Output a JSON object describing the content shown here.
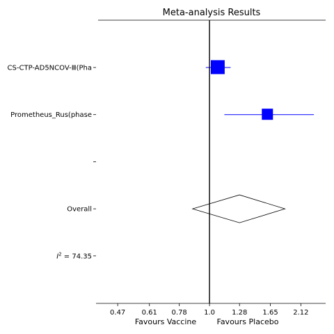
{
  "chart_data": {
    "type": "forest",
    "title": "Meta-analysis Results",
    "x_scale": "log",
    "x_ticks": [
      0.47,
      0.61,
      0.78,
      1.0,
      1.28,
      1.65,
      2.12
    ],
    "x_tick_labels": [
      "0.47",
      "0.61",
      "0.78",
      "1.0",
      "1.28",
      "1.65",
      "2.12"
    ],
    "xlim": [
      0.4,
      2.6
    ],
    "reference_line": 1.0,
    "xlabel_left": "Favours Vaccine",
    "xlabel_right": "Favours Placebo",
    "rows": [
      {
        "label": "CS-CTP-AD5NCOV-Ⅲ(Pha",
        "kind": "study",
        "estimate": 1.07,
        "ci_low": 0.97,
        "ci_high": 1.19
      },
      {
        "label": "Prometheus_Rus(phase",
        "kind": "study",
        "estimate": 1.61,
        "ci_low": 1.13,
        "ci_high": 2.36
      },
      {
        "label": "",
        "kind": "blank"
      },
      {
        "label": "Overall",
        "kind": "overall",
        "estimate": 1.28,
        "ci_low": 0.87,
        "ci_high": 1.86
      }
    ],
    "heterogeneity": {
      "prefix": "I",
      "sup": "2",
      "text": " = 74.35"
    },
    "colors": {
      "marker": "#0000ff",
      "line": "#000000"
    }
  }
}
